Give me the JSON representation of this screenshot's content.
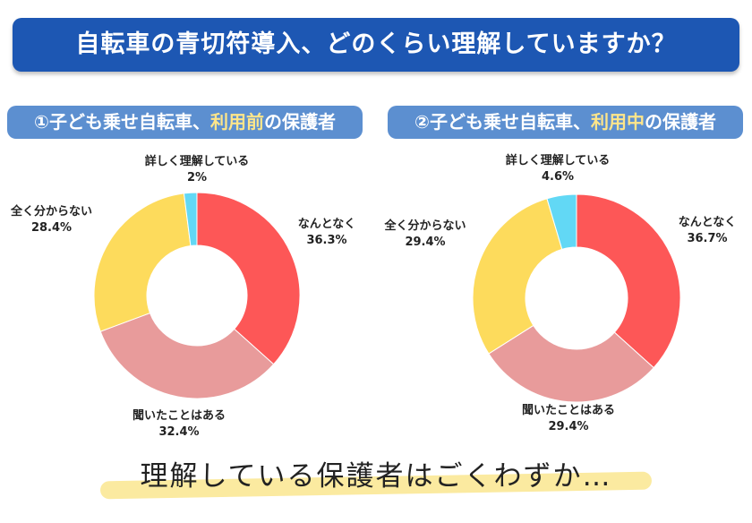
{
  "title": "自転車の青切符導入、どのくらい理解していますか？",
  "footer": "理解している保護者はごくわずか…",
  "colors": {
    "banner": "#1d57b3",
    "pill": "#5c8fd0",
    "highlight": "#fde58a",
    "marker": "#fbeaa0"
  },
  "chart_data": [
    {
      "type": "pie",
      "donut": true,
      "title_parts": {
        "prefix": "①子ども乗せ自転車、",
        "highlight": "利用前",
        "suffix": "の保護者"
      },
      "categories": [
        "なんとなく",
        "聞いたことはある",
        "全く分からない",
        "詳しく理解している"
      ],
      "values": [
        36.3,
        32.4,
        28.4,
        2
      ],
      "value_labels": [
        "36.3%",
        "32.4%",
        "28.4%",
        "2%"
      ],
      "colors": [
        "#fd5757",
        "#e89b9b",
        "#fddb5c",
        "#62d8f5"
      ]
    },
    {
      "type": "pie",
      "donut": true,
      "title_parts": {
        "prefix": "②子ども乗せ自転車、",
        "highlight": "利用中",
        "suffix": "の保護者"
      },
      "categories": [
        "なんとなく",
        "聞いたことはある",
        "全く分からない",
        "詳しく理解している"
      ],
      "values": [
        36.7,
        29.4,
        29.4,
        4.6
      ],
      "value_labels": [
        "36.7%",
        "29.4%",
        "29.4%",
        "4.6%"
      ],
      "colors": [
        "#fd5757",
        "#e89b9b",
        "#fddb5c",
        "#62d8f5"
      ]
    }
  ]
}
